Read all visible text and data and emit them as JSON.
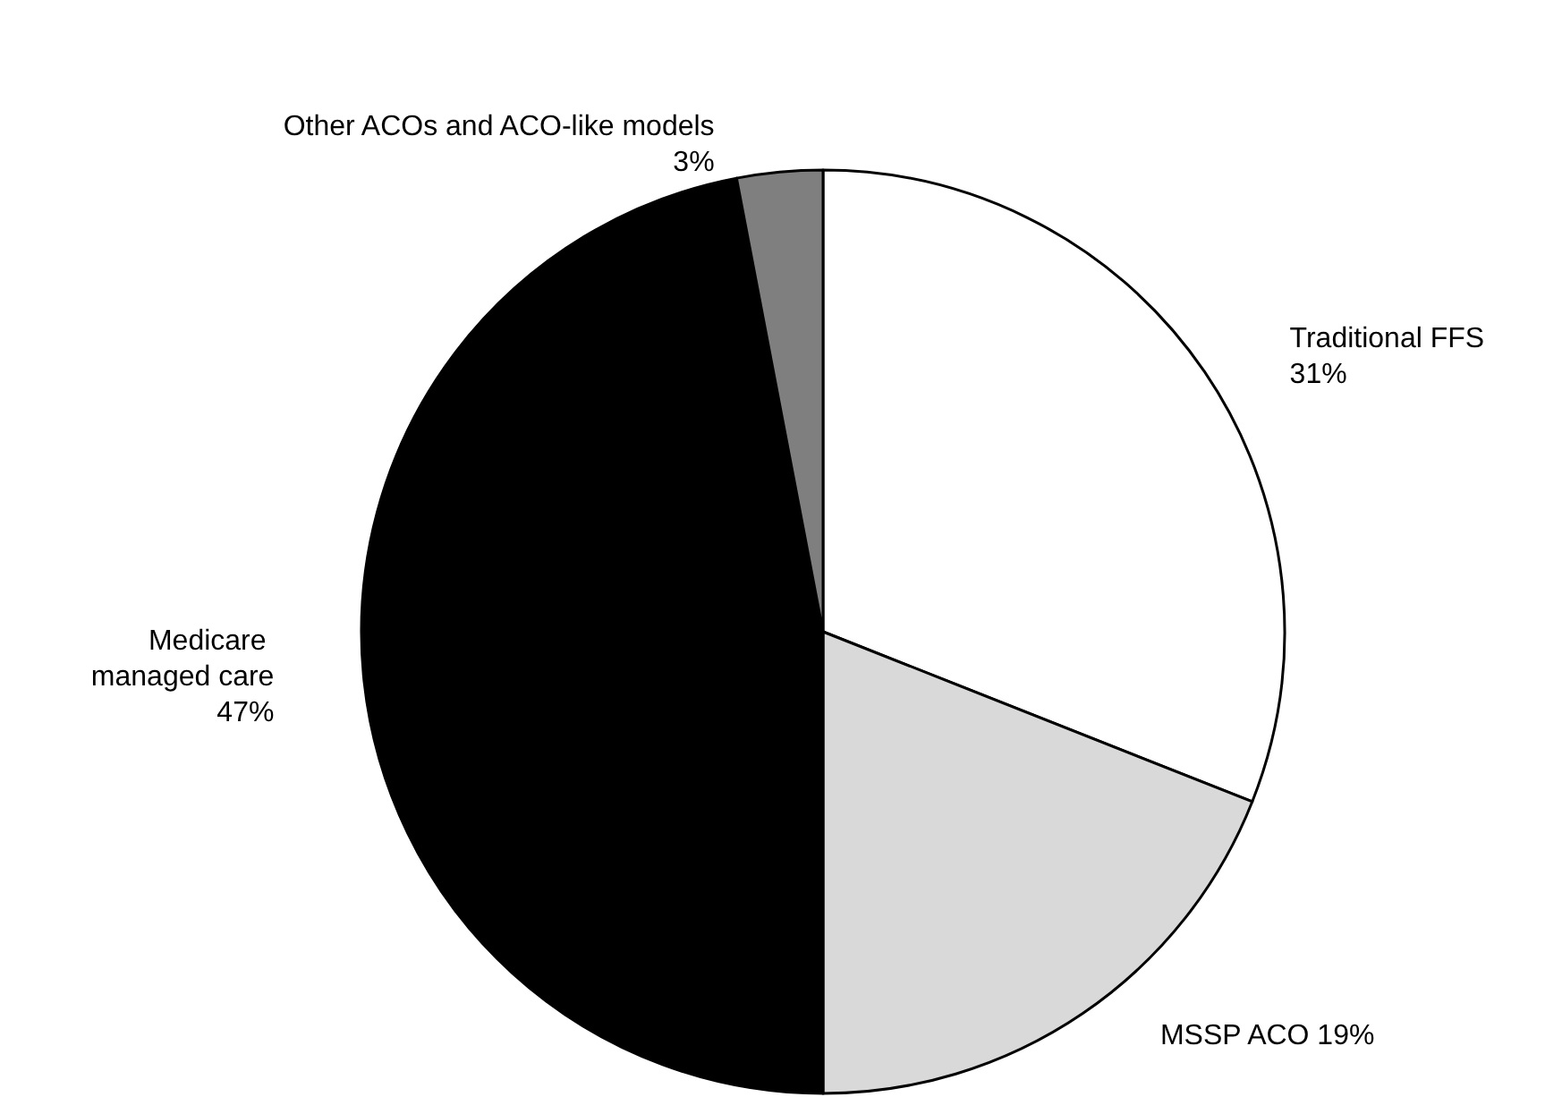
{
  "chart_data": {
    "type": "pie",
    "categories": [
      "Traditional FFS",
      "MSSP ACO",
      "Medicare managed care",
      "Other ACOs and ACO-like models"
    ],
    "values": [
      31,
      19,
      47,
      3
    ],
    "colors": [
      "#ffffff",
      "#d9d9d9",
      "#000000",
      "#7f7f7f"
    ],
    "value_labels": [
      "31%",
      "19%",
      "47%",
      "3%"
    ],
    "legend": false
  }
}
